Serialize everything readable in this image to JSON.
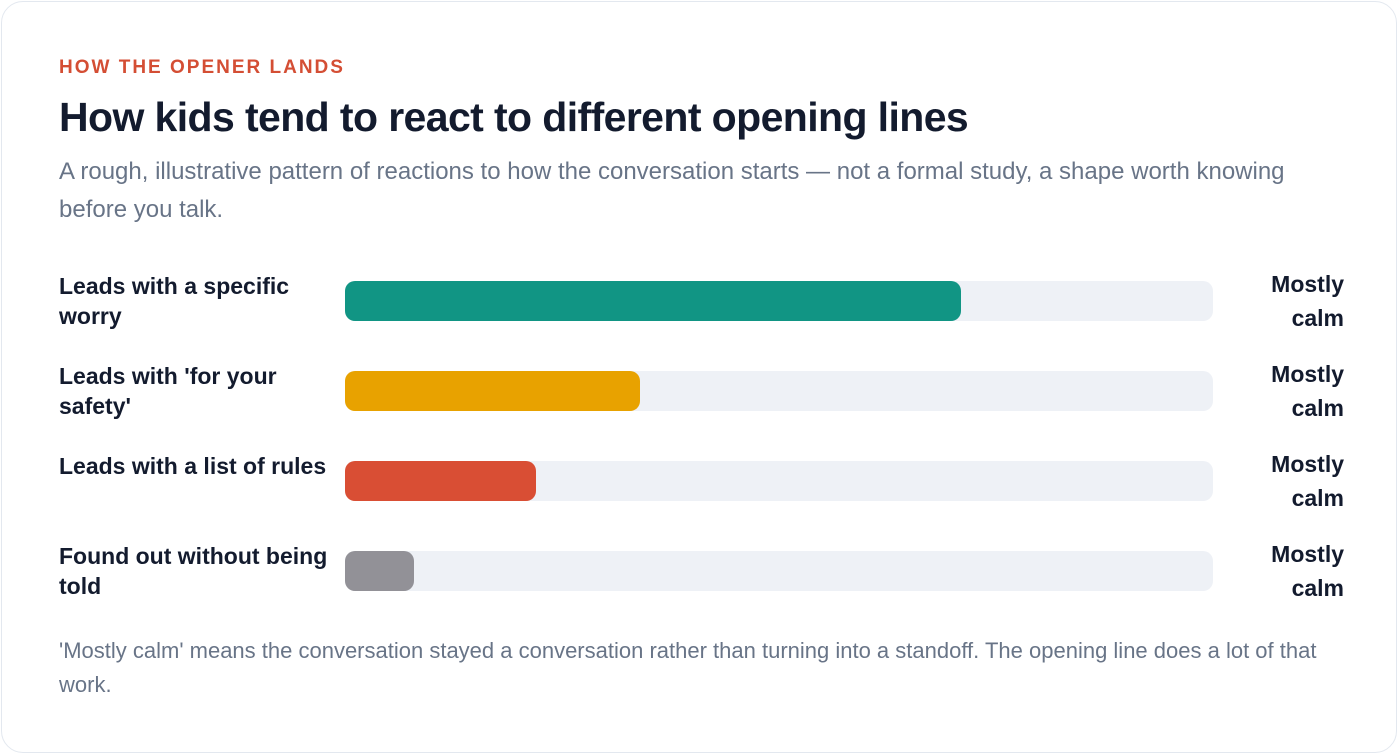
{
  "header": {
    "eyebrow": "HOW THE OPENER LANDS",
    "title": "How kids tend to react to different opening lines",
    "subtitle": "A rough, illustrative pattern of reactions to how the conversation starts — not a formal study, a shape worth knowing before you talk."
  },
  "chart_data": {
    "type": "bar",
    "orientation": "horizontal",
    "categories": [
      "Leads with a specific worry",
      "Leads with 'for your safety'",
      "Leads with a list of rules",
      "Found out without being told"
    ],
    "values": [
      71,
      34,
      22,
      8
    ],
    "value_unit": "percent",
    "xlim": [
      0,
      100
    ],
    "outcome_labels": [
      "Mostly calm",
      "Mostly calm",
      "Mostly calm",
      "Mostly calm"
    ],
    "colors": [
      "#119584",
      "#e8a200",
      "#d94e34",
      "#929197"
    ],
    "track_color": "#eef1f6",
    "grid": false
  },
  "footnote": "'Mostly calm' means the conversation stayed a conversation rather than turning into a standoff. The opening line does a lot of that work."
}
